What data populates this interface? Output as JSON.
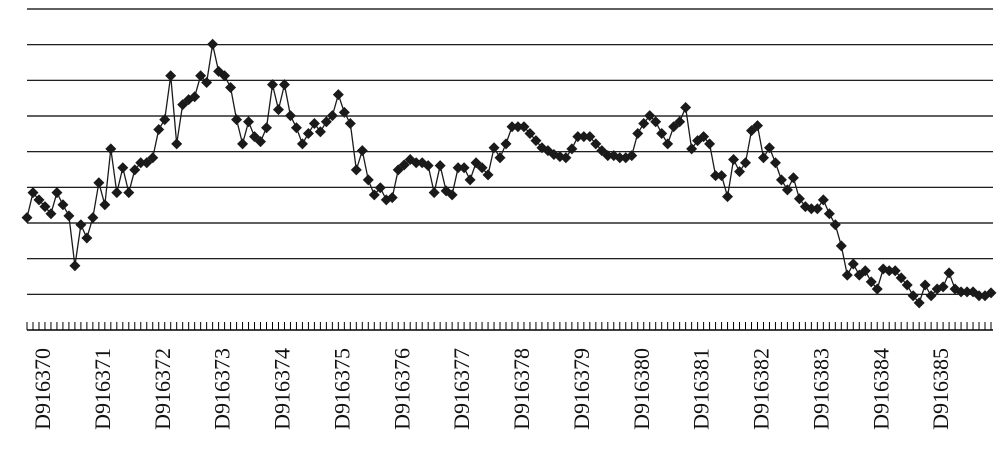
{
  "chart_data": {
    "type": "line",
    "categories": [
      null,
      null,
      null,
      "D916370",
      null,
      null,
      null,
      null,
      null,
      null,
      null,
      null,
      null,
      "D916371",
      null,
      null,
      null,
      null,
      null,
      null,
      null,
      null,
      null,
      "D916372",
      null,
      null,
      null,
      null,
      null,
      null,
      null,
      null,
      null,
      "D916373",
      null,
      null,
      null,
      null,
      null,
      null,
      null,
      null,
      null,
      "D916374",
      null,
      null,
      null,
      null,
      null,
      null,
      null,
      null,
      null,
      "D916375",
      null,
      null,
      null,
      null,
      null,
      null,
      null,
      null,
      null,
      "D916376",
      null,
      null,
      null,
      null,
      null,
      null,
      null,
      null,
      null,
      "D916377",
      null,
      null,
      null,
      null,
      null,
      null,
      null,
      null,
      null,
      "D916378",
      null,
      null,
      null,
      null,
      null,
      null,
      null,
      null,
      null,
      "D916379",
      null,
      null,
      null,
      null,
      null,
      null,
      null,
      null,
      null,
      "D916380",
      null,
      null,
      null,
      null,
      null,
      null,
      null,
      null,
      null,
      "D916381",
      null,
      null,
      null,
      null,
      null,
      null,
      null,
      null,
      null,
      "D916382",
      null,
      null,
      null,
      null,
      null,
      null,
      null,
      null,
      null,
      "D916383",
      null,
      null,
      null,
      null,
      null,
      null,
      null,
      null,
      null,
      "D916384",
      null,
      null,
      null,
      null,
      null,
      null,
      null,
      null,
      null,
      "D916385",
      null,
      null,
      null,
      null,
      null,
      null,
      null,
      null
    ],
    "values": [
      3.15,
      3.85,
      3.65,
      3.46,
      3.26,
      3.85,
      3.51,
      3.2,
      1.8,
      2.95,
      2.58,
      3.15,
      4.13,
      3.51,
      5.08,
      3.85,
      4.55,
      3.85,
      4.49,
      4.69,
      4.69,
      4.83,
      5.62,
      5.9,
      7.13,
      5.22,
      6.32,
      6.46,
      6.54,
      7.13,
      6.94,
      8.01,
      7.25,
      7.13,
      6.8,
      5.9,
      5.22,
      5.84,
      5.42,
      5.28,
      5.67,
      6.88,
      6.18,
      6.88,
      6.01,
      5.67,
      5.22,
      5.51,
      5.79,
      5.56,
      5.84,
      6.01,
      6.6,
      6.1,
      5.79,
      4.49,
      5.03,
      4.21,
      3.79,
      3.99,
      3.65,
      3.71,
      4.49,
      4.63,
      4.78,
      4.69,
      4.69,
      4.61,
      3.85,
      4.61,
      3.9,
      3.79,
      4.55,
      4.55,
      4.21,
      4.69,
      4.55,
      4.35,
      5.11,
      4.83,
      5.22,
      5.7,
      5.7,
      5.7,
      5.51,
      5.31,
      5.11,
      5.03,
      4.92,
      4.86,
      4.83,
      5.08,
      5.42,
      5.42,
      5.42,
      5.22,
      5.03,
      4.89,
      4.89,
      4.83,
      4.83,
      4.89,
      5.51,
      5.79,
      6.01,
      5.84,
      5.51,
      5.22,
      5.7,
      5.84,
      6.24,
      5.08,
      5.31,
      5.42,
      5.22,
      4.33,
      4.33,
      3.74,
      4.78,
      4.44,
      4.69,
      5.59,
      5.73,
      4.83,
      5.11,
      4.69,
      4.21,
      3.93,
      4.27,
      3.68,
      3.46,
      3.4,
      3.4,
      3.65,
      3.26,
      2.95,
      2.36,
      1.54,
      1.85,
      1.54,
      1.66,
      1.35,
      1.15,
      1.71,
      1.66,
      1.66,
      1.46,
      1.26,
      0.96,
      0.76,
      1.26,
      0.96,
      1.15,
      1.21,
      1.6,
      1.15,
      1.07,
      1.07,
      1.07,
      0.96,
      0.96,
      1.04
    ],
    "color": "#1a1a1a",
    "ylim": [
      0,
      9
    ],
    "yticks": [
      0,
      1,
      2,
      3,
      4,
      5,
      6,
      7,
      8,
      9
    ],
    "grid": true
  }
}
